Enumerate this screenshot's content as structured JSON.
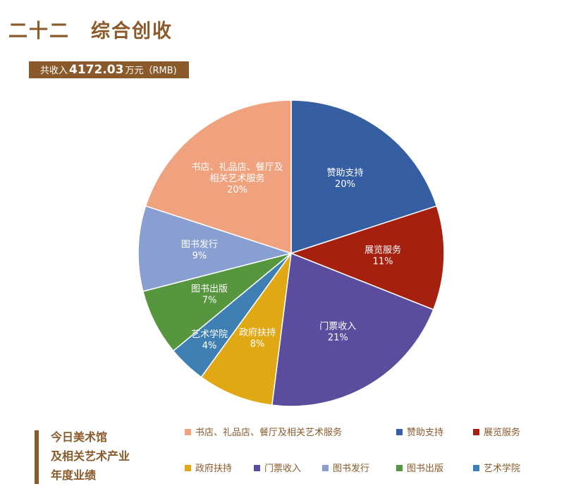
{
  "heading": {
    "number": "二十二",
    "title": "综合创收"
  },
  "income": {
    "prefix": "共收入",
    "amount": "4172.03",
    "suffix": "万元（RMB)"
  },
  "footer": {
    "line1": "今日美术馆",
    "line2": "及相关艺术产业",
    "line3": "年度业绩"
  },
  "chart_data": {
    "type": "pie",
    "total": 4172.03,
    "unit": "万元（RMB)",
    "slices": [
      {
        "label": "赞助支持",
        "value": 20,
        "pct_label": "20%",
        "color": "#365fa3"
      },
      {
        "label": "展览服务",
        "value": 11,
        "pct_label": "11%",
        "color": "#a5200f"
      },
      {
        "label": "门票收入",
        "value": 21,
        "pct_label": "21%",
        "color": "#5b4c9e"
      },
      {
        "label": "政府扶持",
        "value": 8,
        "pct_label": "8%",
        "color": "#e0a815"
      },
      {
        "label": "艺术学院",
        "value": 4,
        "pct_label": "4%",
        "color": "#3f80b4"
      },
      {
        "label": "图书出版",
        "value": 7,
        "pct_label": "7%",
        "color": "#55963e"
      },
      {
        "label": "图书发行",
        "value": 9,
        "pct_label": "9%",
        "color": "#8a9fd1"
      },
      {
        "label": "书店、礼品店、餐厅及相关艺术服务",
        "value": 20,
        "pct_label": "20%",
        "color": "#f0a27e",
        "label_lines": [
          "书店、礼品店、餐厅及",
          "相关艺术服务"
        ]
      }
    ],
    "legend": [
      {
        "label": "书店、礼品店、餐厅及相关艺术服务",
        "color": "#f0a27e"
      },
      {
        "label": "赞助支持",
        "color": "#365fa3"
      },
      {
        "label": "展览服务",
        "color": "#a5200f"
      },
      {
        "label": "政府扶持",
        "color": "#e0a815"
      },
      {
        "label": "门票收入",
        "color": "#5b4c9e"
      },
      {
        "label": "图书发行",
        "color": "#8a9fd1"
      },
      {
        "label": "图书出版",
        "color": "#55963e"
      },
      {
        "label": "艺术学院",
        "color": "#3f80b4"
      }
    ]
  }
}
